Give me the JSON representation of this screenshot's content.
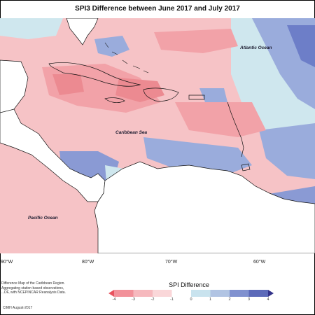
{
  "title": "SPI3 Difference between June 2017 and July 2017",
  "labels": {
    "atlantic": "Atlantic Ocean",
    "caribbean": "Caribbean Sea",
    "pacific": "Pacific Ocean"
  },
  "longitudes": [
    "90°W",
    "80°W",
    "70°W",
    "60°W"
  ],
  "credits": [
    "Difference Map of the Caribbean Region.",
    "Aggregating station based observations,",
    "...DF, with NCEPINCAR Reanalysis Data."
  ],
  "copyright": "CIMH August-2017",
  "legend": {
    "title": "SPI Difference",
    "ticks": [
      "-4",
      "-3",
      "-2",
      "-1",
      "0",
      "1",
      "2",
      "3",
      "4"
    ],
    "colors": [
      "#e8535f",
      "#f2919a",
      "#f6b9be",
      "#fad7d9",
      "#ffffff",
      "#c9e3ee",
      "#b1c4e3",
      "#8091cf",
      "#5c6ab9",
      "#33338a"
    ]
  },
  "colors": {
    "dry_light": "#f5c6c8",
    "dry_medium": "#f2a2a8",
    "dry_strong": "#ec8a91",
    "wet_light": "#cfe7ee",
    "wet_medium": "#9aacdc",
    "wet_strong": "#6d7ec8",
    "land": "#ffffff",
    "coast": "#111111"
  }
}
